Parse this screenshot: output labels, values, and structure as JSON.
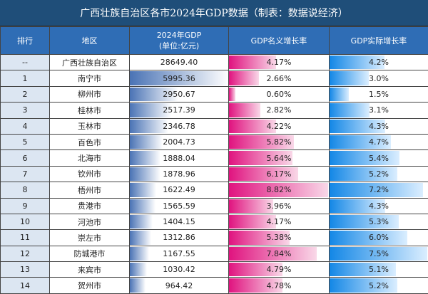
{
  "title": "广西壮族自治区各市2024年GDP数据（制表：数据说经济）",
  "headers": [
    "排行",
    "地区",
    "2024年GDP",
    "(单位:亿元)",
    "GDP名义增长率",
    "GDP实际增长率"
  ],
  "colors": {
    "title_bg": "#1f4e79",
    "header_bg": "#2f6db5",
    "gdp_bar": "#4a73b5",
    "nominal_bar": "#e0137f",
    "real_bar": "#1387e6"
  },
  "rows": [
    {
      "rank": "--",
      "region": "广西壮族自治区",
      "gdp": "28649.40",
      "nominal": "4.17%",
      "real": "4.2%"
    },
    {
      "rank": "1",
      "region": "南宁市",
      "gdp": "5995.36",
      "nominal": "2.66%",
      "real": "3.0%"
    },
    {
      "rank": "2",
      "region": "柳州市",
      "gdp": "2950.67",
      "nominal": "0.60%",
      "real": "1.5%"
    },
    {
      "rank": "3",
      "region": "桂林市",
      "gdp": "2517.39",
      "nominal": "2.82%",
      "real": "3.1%"
    },
    {
      "rank": "4",
      "region": "玉林市",
      "gdp": "2346.78",
      "nominal": "4.22%",
      "real": "4.3%"
    },
    {
      "rank": "5",
      "region": "百色市",
      "gdp": "2004.73",
      "nominal": "5.82%",
      "real": "4.7%"
    },
    {
      "rank": "6",
      "region": "北海市",
      "gdp": "1888.04",
      "nominal": "5.64%",
      "real": "5.4%"
    },
    {
      "rank": "7",
      "region": "钦州市",
      "gdp": "1878.96",
      "nominal": "6.17%",
      "real": "5.2%"
    },
    {
      "rank": "8",
      "region": "梧州市",
      "gdp": "1622.49",
      "nominal": "8.82%",
      "real": "7.2%"
    },
    {
      "rank": "9",
      "region": "贵港市",
      "gdp": "1565.59",
      "nominal": "3.96%",
      "real": "4.3%"
    },
    {
      "rank": "10",
      "region": "河池市",
      "gdp": "1404.15",
      "nominal": "4.17%",
      "real": "5.3%"
    },
    {
      "rank": "11",
      "region": "崇左市",
      "gdp": "1312.86",
      "nominal": "5.38%",
      "real": "6.0%"
    },
    {
      "rank": "12",
      "region": "防城港市",
      "gdp": "1167.55",
      "nominal": "7.84%",
      "real": "7.5%"
    },
    {
      "rank": "13",
      "region": "来宾市",
      "gdp": "1030.42",
      "nominal": "4.79%",
      "real": "5.1%"
    },
    {
      "rank": "14",
      "region": "贺州市",
      "gdp": "964.42",
      "nominal": "4.78%",
      "real": "5.2%"
    }
  ]
}
